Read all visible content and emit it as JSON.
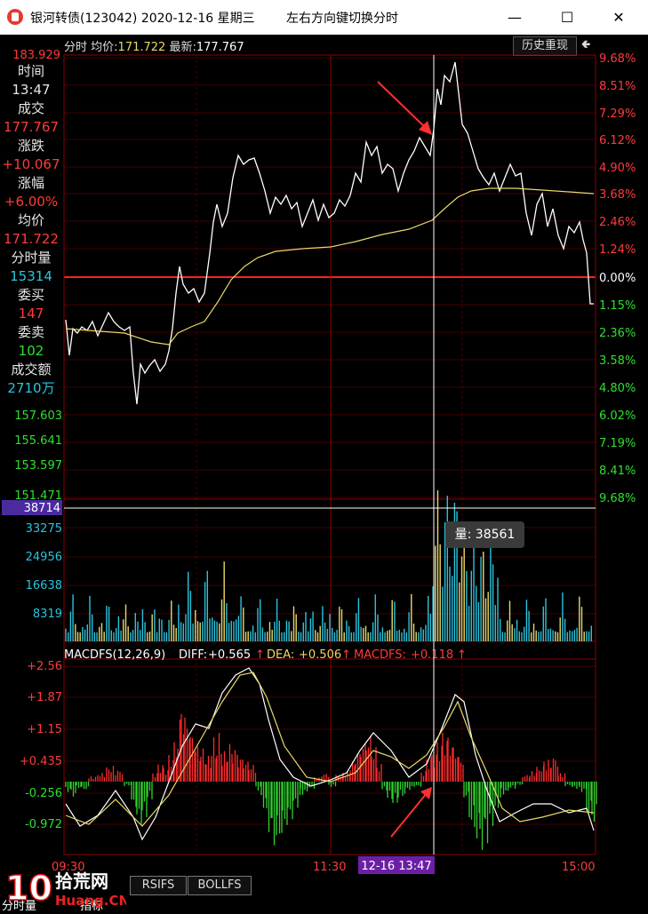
{
  "window": {
    "title": "银河转债(123042) 2020-12-16 星期三",
    "hint": "左右方向键切换分时",
    "minimize": "—",
    "maximize": "☐",
    "close": "✕"
  },
  "header": {
    "mode": "分时",
    "avg_label": "均价:",
    "avg_value": "171.722",
    "latest_label": "最新:",
    "latest_value": "177.767",
    "history_button": "历史重现",
    "back_button": "🢀"
  },
  "info_panel": [
    {
      "label": "时间",
      "value": "13:47",
      "value_color": "#e6e6e6"
    },
    {
      "label": "成交",
      "value": "177.767",
      "value_color": "#ff3b3b"
    },
    {
      "label": "涨跌",
      "value": "+10.067",
      "value_color": "#ff3b3b"
    },
    {
      "label": "涨幅",
      "value": "+6.00%",
      "value_color": "#ff3b3b"
    },
    {
      "label": "均价",
      "value": "171.722",
      "value_color": "#ff3b3b"
    },
    {
      "label": "分时量",
      "value": "15314",
      "value_color": "#29c4de"
    },
    {
      "label": "委买",
      "value": "147",
      "value_color": "#ff3b3b"
    },
    {
      "label": "委卖",
      "value": "102",
      "value_color": "#2ee02e"
    },
    {
      "label": "成交额",
      "value": "2710万",
      "value_color": "#29c4de"
    }
  ],
  "price_axis_left": {
    "top": "183.929",
    "lower": [
      "157.603",
      "155.641",
      "153.597",
      "151.471"
    ]
  },
  "price_axis_right": {
    "up": [
      "9.68%",
      "8.51%",
      "7.29%",
      "6.12%",
      "4.90%",
      "3.68%",
      "2.46%",
      "1.24%"
    ],
    "zero": "0.00%",
    "down": [
      "1.15%",
      "2.36%",
      "3.58%",
      "4.80%",
      "6.02%",
      "7.19%",
      "8.41%",
      "9.68%"
    ]
  },
  "volume_axis": {
    "highlight": "38714",
    "ticks": [
      "33275",
      "24956",
      "16638",
      "8319"
    ]
  },
  "volume_tooltip": "量: 38561",
  "macd": {
    "title": "MACDFS(12,26,9)",
    "diff_label": "DIFF:",
    "diff_value": "+0.565",
    "dea_label": "DEA:",
    "dea_value": "+0.506",
    "macdfs_label": "MACDFS:",
    "macdfs_value": "+0.118",
    "arrow": "↑",
    "ticks": [
      "+2.56",
      "+1.87",
      "+1.15",
      "+0.435",
      "-0.256",
      "-0.972"
    ]
  },
  "time_axis": {
    "start": "09:30",
    "mid": "11:30",
    "cursor": "12-16 13:47",
    "end": "15:00"
  },
  "bottom_tabs": [
    "RSIFS",
    "BOLLFS"
  ],
  "bottom_labels": {
    "volume": "分时量",
    "indicator": "指标"
  },
  "watermark": {
    "brand": "拾荒网",
    "site": "Huang.CN",
    "number": "10"
  },
  "colors": {
    "up": "#ff3b3b",
    "down": "#2ee02e",
    "cyan": "#29c4de",
    "price_line": "#ffffff",
    "avg_line": "#e8d86a",
    "grid": "#8b0000"
  }
}
